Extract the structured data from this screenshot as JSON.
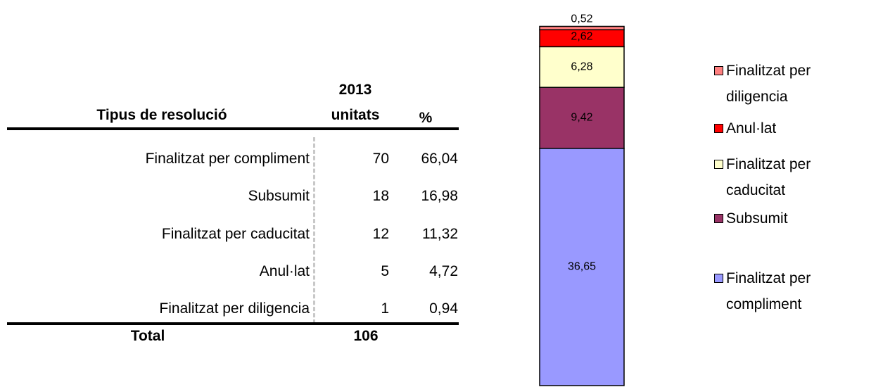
{
  "table": {
    "header": [
      "Tipus de resolució",
      "2013",
      "unitats",
      "%"
    ],
    "rows": [
      [
        "Finalitzat per compliment",
        "70",
        "66,04"
      ],
      [
        "Subsumit",
        "18",
        "16,98"
      ],
      [
        "Finalitzat per caducitat",
        "12",
        "11,32"
      ],
      [
        "Anul·lat",
        "5",
        "4,72"
      ],
      [
        "Finalitzat per diligencia",
        "1",
        "0,94"
      ]
    ],
    "total": [
      "Total",
      "106"
    ]
  },
  "chart_data": {
    "type": "bar",
    "stacked": true,
    "series": [
      {
        "name": "Finalitzat per compliment",
        "color": "#9999ff",
        "values": [
          36.65
        ],
        "value_labels": [
          "36,65"
        ]
      },
      {
        "name": "Subsumit",
        "color": "#993366",
        "values": [
          9.42
        ],
        "value_labels": [
          "9,42"
        ]
      },
      {
        "name": "Finalitzat per caducitat",
        "color": "#ffffcc",
        "values": [
          6.28
        ],
        "value_labels": [
          "6,28"
        ]
      },
      {
        "name": "Anul·lat",
        "color": "#ff0000",
        "values": [
          2.62
        ],
        "value_labels": [
          "2,62"
        ]
      },
      {
        "name": "Finalitzat per diligencia",
        "color": "#ff8080",
        "values": [
          0.52
        ],
        "value_labels": [
          "0,52"
        ]
      }
    ]
  }
}
